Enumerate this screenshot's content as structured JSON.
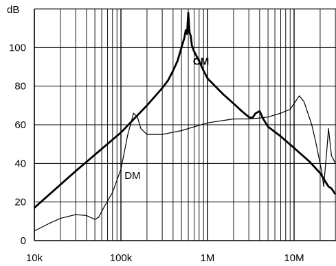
{
  "chart_data": {
    "type": "line",
    "title": "",
    "xlabel": "",
    "ylabel": "dB",
    "x_scale": "log",
    "xlim": [
      10000,
      30000000
    ],
    "ylim": [
      0,
      120
    ],
    "grid": true,
    "x_ticks": [
      {
        "value": 10000,
        "label": "10k"
      },
      {
        "value": 100000,
        "label": "100k"
      },
      {
        "value": 1000000,
        "label": "1M"
      },
      {
        "value": 10000000,
        "label": "10M"
      }
    ],
    "y_ticks": [
      {
        "value": 0,
        "label": "0"
      },
      {
        "value": 20,
        "label": "20"
      },
      {
        "value": 40,
        "label": "40"
      },
      {
        "value": 60,
        "label": "60"
      },
      {
        "value": 80,
        "label": "80"
      },
      {
        "value": 100,
        "label": "100"
      }
    ],
    "series": [
      {
        "name": "CM",
        "line_width": "thick",
        "label_at": [
          680000,
          91
        ],
        "points": [
          [
            10000,
            17
          ],
          [
            30000,
            36
          ],
          [
            100000,
            56
          ],
          [
            200000,
            70
          ],
          [
            300000,
            79
          ],
          [
            350000,
            83
          ],
          [
            400000,
            88
          ],
          [
            450000,
            93
          ],
          [
            500000,
            100
          ],
          [
            540000,
            105
          ],
          [
            560000,
            109
          ],
          [
            580000,
            107
          ],
          [
            600000,
            118
          ],
          [
            620000,
            108
          ],
          [
            640000,
            106
          ],
          [
            660000,
            101
          ],
          [
            700000,
            98
          ],
          [
            800000,
            93
          ],
          [
            900000,
            88
          ],
          [
            1000000,
            84
          ],
          [
            1500000,
            76
          ],
          [
            2000000,
            71
          ],
          [
            2500000,
            67
          ],
          [
            3000000,
            64
          ],
          [
            3300000,
            63.5
          ],
          [
            3600000,
            66
          ],
          [
            4000000,
            67
          ],
          [
            4400000,
            63
          ],
          [
            5000000,
            59
          ],
          [
            7000000,
            54
          ],
          [
            10000000,
            48
          ],
          [
            15000000,
            41
          ],
          [
            20000000,
            35
          ],
          [
            25000000,
            28
          ],
          [
            27000000,
            27
          ],
          [
            30000000,
            24
          ]
        ]
      },
      {
        "name": "DM",
        "line_width": "thin",
        "label_at": [
          110000,
          32
        ],
        "points": [
          [
            10000,
            5
          ],
          [
            15000,
            9
          ],
          [
            20000,
            11.5
          ],
          [
            30000,
            13.5
          ],
          [
            40000,
            13
          ],
          [
            50000,
            11
          ],
          [
            55000,
            12
          ],
          [
            65000,
            18
          ],
          [
            80000,
            25
          ],
          [
            100000,
            37
          ],
          [
            120000,
            55
          ],
          [
            140000,
            66
          ],
          [
            155000,
            64
          ],
          [
            170000,
            58
          ],
          [
            200000,
            55
          ],
          [
            300000,
            55
          ],
          [
            500000,
            57
          ],
          [
            1000000,
            61
          ],
          [
            2000000,
            63
          ],
          [
            3000000,
            63
          ],
          [
            4000000,
            63.5
          ],
          [
            5000000,
            64
          ],
          [
            7000000,
            66
          ],
          [
            9000000,
            68
          ],
          [
            10000000,
            71
          ],
          [
            11500000,
            75
          ],
          [
            13000000,
            72
          ],
          [
            16000000,
            60
          ],
          [
            18000000,
            50
          ],
          [
            21000000,
            35
          ],
          [
            22000000,
            28
          ],
          [
            24000000,
            48
          ],
          [
            25000000,
            58
          ],
          [
            27000000,
            44
          ],
          [
            30000000,
            40
          ]
        ]
      }
    ]
  }
}
